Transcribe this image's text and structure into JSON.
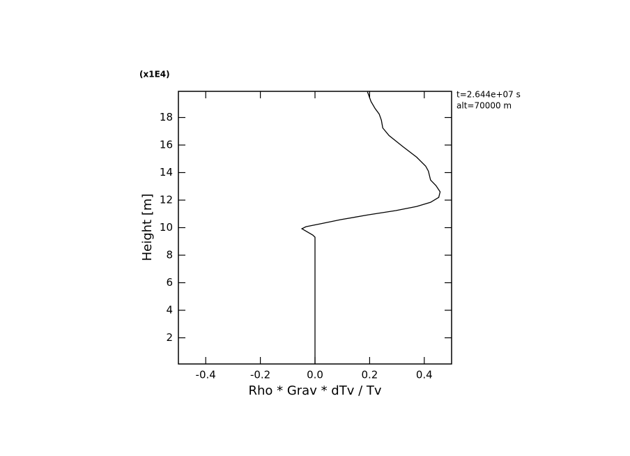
{
  "chart_data": {
    "type": "line",
    "xlabel": "Rho * Grav * dTv / Tv",
    "ylabel": "Height [m]",
    "y_multiplier": "(x1E4)",
    "annotations": [
      "t=2.644e+07 s",
      "alt=70000 m"
    ],
    "color": "#000000",
    "xlim": [
      -0.5,
      0.5
    ],
    "ylim": [
      0.1,
      19.9
    ],
    "xticks": [
      -0.4,
      -0.2,
      {
        "value": 0,
        "label": "0.0"
      },
      0.2,
      0.4
    ],
    "yticks": [
      2,
      4,
      6,
      8,
      10,
      12,
      14,
      16,
      18
    ],
    "y": [
      0.1,
      9.31,
      9.46,
      9.92,
      10.07,
      10.27,
      10.58,
      10.93,
      11.24,
      11.54,
      11.84,
      12.2,
      12.6,
      13.05,
      13.46,
      14.11,
      14.47,
      15.12,
      15.88,
      16.69,
      17.24,
      17.8,
      18.25,
      18.65,
      19.16,
      19.71,
      19.86
    ],
    "values": [
      0.0,
      0.0,
      -0.008,
      -0.048,
      -0.033,
      0.018,
      0.094,
      0.195,
      0.296,
      0.372,
      0.423,
      0.453,
      0.458,
      0.443,
      0.423,
      0.415,
      0.405,
      0.372,
      0.322,
      0.271,
      0.248,
      0.243,
      0.235,
      0.22,
      0.205,
      0.195,
      0.192
    ]
  }
}
